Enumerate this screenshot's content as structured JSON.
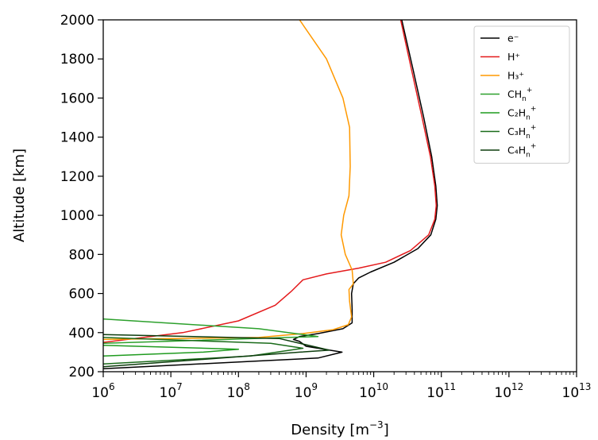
{
  "chart_data": {
    "type": "line",
    "title": "",
    "xlabel": "Density [m",
    "xlabel_sup": "−3",
    "xlabel_end": "]",
    "ylabel": "Altitude [km]",
    "xscale": "log",
    "xlim": [
      1000000,
      10000000000000
    ],
    "ylim": [
      200,
      2000
    ],
    "grid": false,
    "legend_position": "top-right",
    "x_ticks": [
      {
        "base": "10",
        "exp": "6"
      },
      {
        "base": "10",
        "exp": "7"
      },
      {
        "base": "10",
        "exp": "8"
      },
      {
        "base": "10",
        "exp": "9"
      },
      {
        "base": "10",
        "exp": "10"
      },
      {
        "base": "10",
        "exp": "11"
      },
      {
        "base": "10",
        "exp": "12"
      },
      {
        "base": "10",
        "exp": "13"
      }
    ],
    "y_ticks": [
      "200",
      "400",
      "600",
      "800",
      "1000",
      "1200",
      "1400",
      "1600",
      "1800",
      "2000"
    ],
    "series": [
      {
        "name": "e⁻",
        "color": "#000000",
        "points": [
          [
            1000000,
            215
          ],
          [
            200000000,
            255
          ],
          [
            1500000000,
            270
          ],
          [
            3400000000,
            300
          ],
          [
            1000000000,
            330
          ],
          [
            800000000,
            355
          ],
          [
            650000000,
            365
          ],
          [
            800000000,
            380
          ],
          [
            1500000000,
            395
          ],
          [
            3500000000,
            420
          ],
          [
            4800000000,
            450
          ],
          [
            4800000000,
            520
          ],
          [
            4700000000,
            600
          ],
          [
            5000000000,
            650
          ],
          [
            6000000000,
            680
          ],
          [
            9000000000,
            710
          ],
          [
            20000000000,
            760
          ],
          [
            45000000000,
            830
          ],
          [
            70000000000,
            900
          ],
          [
            83000000000,
            980
          ],
          [
            87000000000,
            1050
          ],
          [
            83000000000,
            1150
          ],
          [
            72000000000,
            1300
          ],
          [
            55000000000,
            1500
          ],
          [
            38000000000,
            1750
          ],
          [
            26000000000,
            2000
          ]
        ]
      },
      {
        "name": "H⁺",
        "color": "#e41a1c",
        "points": [
          [
            1000000,
            350
          ],
          [
            15000000,
            400
          ],
          [
            100000000,
            460
          ],
          [
            350000000,
            540
          ],
          [
            600000000,
            610
          ],
          [
            900000000,
            670
          ],
          [
            2000000000,
            700
          ],
          [
            6000000000,
            730
          ],
          [
            15000000000,
            760
          ],
          [
            35000000000,
            820
          ],
          [
            65000000000,
            900
          ],
          [
            80000000000,
            980
          ],
          [
            84000000000,
            1050
          ],
          [
            80000000000,
            1150
          ],
          [
            69000000000,
            1300
          ],
          [
            52000000000,
            1500
          ],
          [
            36000000000,
            1750
          ],
          [
            25000000000,
            2000
          ]
        ]
      },
      {
        "name": "H₃⁺",
        "color": "#ff9900",
        "points": [
          [
            1000000,
            365
          ],
          [
            200000000,
            375
          ],
          [
            900000000,
            395
          ],
          [
            2500000000,
            415
          ],
          [
            4200000000,
            440
          ],
          [
            4700000000,
            480
          ],
          [
            4400000000,
            560
          ],
          [
            4300000000,
            620
          ],
          [
            5000000000,
            650
          ],
          [
            4800000000,
            720
          ],
          [
            3800000000,
            800
          ],
          [
            3300000000,
            900
          ],
          [
            3600000000,
            1000
          ],
          [
            4300000000,
            1100
          ],
          [
            4500000000,
            1250
          ],
          [
            4400000000,
            1450
          ],
          [
            3500000000,
            1600
          ],
          [
            2000000000,
            1800
          ],
          [
            800000000,
            2000
          ]
        ]
      },
      {
        "name": "CH",
        "name_sub": "n",
        "name_sup": "+",
        "color": "#2ca02c",
        "points": [
          [
            1000000,
            470
          ],
          [
            200000000,
            420
          ],
          [
            700000000,
            395
          ],
          [
            1500000000,
            380
          ],
          [
            1000000,
            345
          ]
        ]
      },
      {
        "name": "C₂H",
        "name_sub": "n",
        "name_sup": "+",
        "color": "#1f9b1f",
        "points": [
          [
            1000000,
            335
          ],
          [
            100000000,
            315
          ],
          [
            30000000,
            300
          ],
          [
            1000000,
            280
          ]
        ]
      },
      {
        "name": "C₃H",
        "name_sub": "n",
        "name_sup": "+",
        "color": "#1a6b1a",
        "points": [
          [
            1000000,
            375
          ],
          [
            300000000,
            345
          ],
          [
            900000000,
            320
          ],
          [
            150000000,
            280
          ],
          [
            1000000,
            240
          ]
        ]
      },
      {
        "name": "C₄H",
        "name_sub": "n",
        "name_sup": "+",
        "color": "#0d3d0d",
        "points": [
          [
            1000000,
            390
          ],
          [
            400000000,
            370
          ],
          [
            2200000000,
            310
          ],
          [
            800000000,
            300
          ],
          [
            1000000,
            225
          ]
        ]
      }
    ]
  }
}
